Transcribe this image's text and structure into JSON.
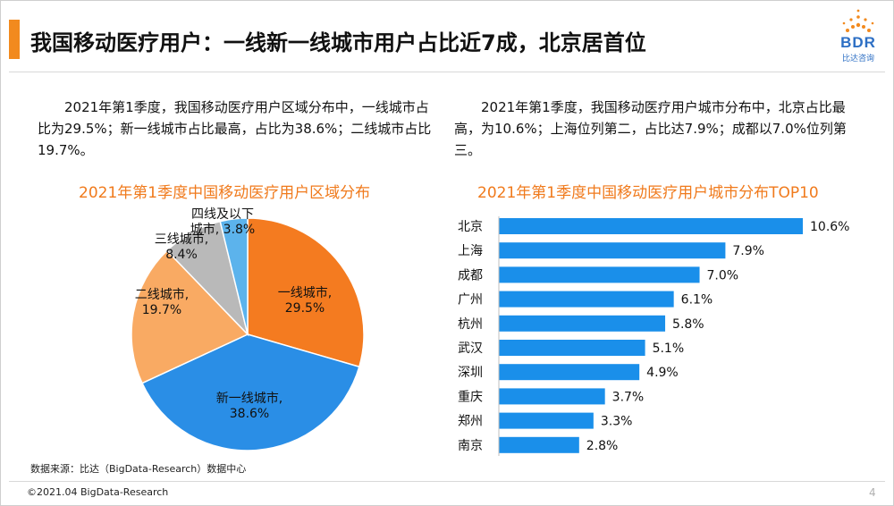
{
  "header": {
    "title": "我国移动医疗用户：一线新一线城市用户占比近7成，北京居首位",
    "accent_color": "#f28a1e",
    "logo_text": "BDR",
    "logo_sub": "比达咨询"
  },
  "left_text": "2021年第1季度，我国移动医疗用户区域分布中，一线城市占比为29.5%；新一线城市占比最高，占比为38.6%；二线城市占比19.7%。",
  "right_text": "2021年第1季度，我国移动医疗用户城市分布中，北京占比最高，为10.6%；上海位列第二，占比达7.9%；成都以7.0%位列第三。",
  "source": "数据来源：比达（BigData-Research）数据中心",
  "footer": "©2021.04 BigData-Research",
  "page_number": "4",
  "chart_data": [
    {
      "type": "pie",
      "title": "2021年第1季度中国移动医疗用户区域分布",
      "slices": [
        {
          "label": "一线城市",
          "value": 29.5,
          "value_label": "29.5%",
          "color": "#f47b20"
        },
        {
          "label": "新一线城市",
          "value": 38.6,
          "value_label": "38.6%",
          "color": "#2a8ee6"
        },
        {
          "label": "二线城市",
          "value": 19.7,
          "value_label": "19.7%",
          "color": "#f9aa63"
        },
        {
          "label": "三线城市",
          "value": 8.4,
          "value_label": "8.4%",
          "color": "#b9b9b9"
        },
        {
          "label": "四线及以下城市",
          "label_lines": [
            "四线及以下",
            "城市"
          ],
          "value": 3.8,
          "value_label": "3.8%",
          "color": "#5cb3ec"
        }
      ]
    },
    {
      "type": "bar",
      "orientation": "horizontal",
      "title": "2021年第1季度中国移动医疗用户城市分布TOP10",
      "categories": [
        "北京",
        "上海",
        "成都",
        "广州",
        "杭州",
        "武汉",
        "深圳",
        "重庆",
        "郑州",
        "南京"
      ],
      "values": [
        10.6,
        7.9,
        7.0,
        6.1,
        5.8,
        5.1,
        4.9,
        3.7,
        3.3,
        2.8
      ],
      "value_labels": [
        "10.6%",
        "7.9%",
        "7.0%",
        "6.1%",
        "5.8%",
        "5.1%",
        "4.9%",
        "3.7%",
        "3.3%",
        "2.8%"
      ],
      "xlim": [
        0,
        10.6
      ],
      "bar_color": "#1a8fea"
    }
  ]
}
